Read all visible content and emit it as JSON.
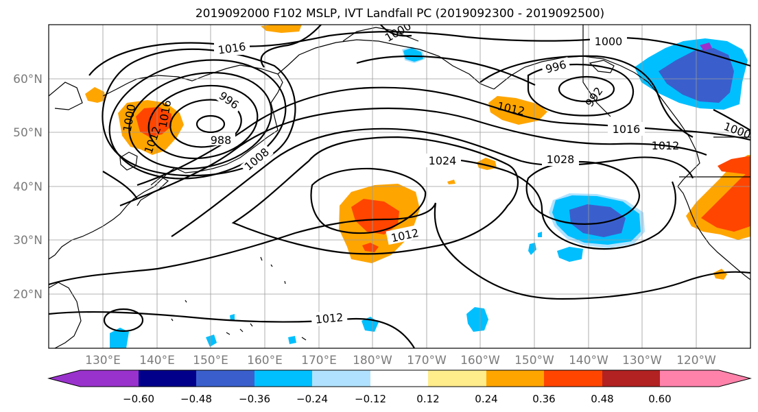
{
  "title": "2019092000 F102 MSLP, IVT Landfall PC (2019092300 - 2019092500)",
  "lat_labels": [
    "60°N",
    "50°N",
    "40°N",
    "30°N",
    "20°N"
  ],
  "lon_labels": [
    "130°E",
    "140°E",
    "150°E",
    "160°E",
    "170°E",
    "180°W",
    "170°W",
    "160°W",
    "150°W",
    "140°W",
    "130°W",
    "120°W"
  ],
  "colorbar": {
    "ticks": [
      "−0.60",
      "−0.48",
      "−0.36",
      "−0.24",
      "−0.12",
      "0.12",
      "0.24",
      "0.36",
      "0.48",
      "0.60"
    ],
    "colors": [
      "#9932cc",
      "#00008b",
      "#3a5fcd",
      "#00bfff",
      "#b0e2ff",
      "#ffffff",
      "#ffec8b",
      "#ffa500",
      "#ff4500",
      "#b22222",
      "#ff82ab"
    ]
  },
  "contour_labels": [
    {
      "text": "1016"
    },
    {
      "text": "996"
    },
    {
      "text": "988"
    },
    {
      "text": "1008"
    },
    {
      "text": "1024"
    },
    {
      "text": "1028"
    },
    {
      "text": "1012"
    },
    {
      "text": "1012"
    },
    {
      "text": "1012"
    },
    {
      "text": "1016"
    },
    {
      "text": "1000"
    },
    {
      "text": "996"
    },
    {
      "text": "992"
    },
    {
      "text": "1000"
    },
    {
      "text": "1000"
    },
    {
      "text": "1012"
    },
    {
      "text": "1000"
    },
    {
      "text": "1016"
    },
    {
      "text": "1012"
    }
  ]
}
